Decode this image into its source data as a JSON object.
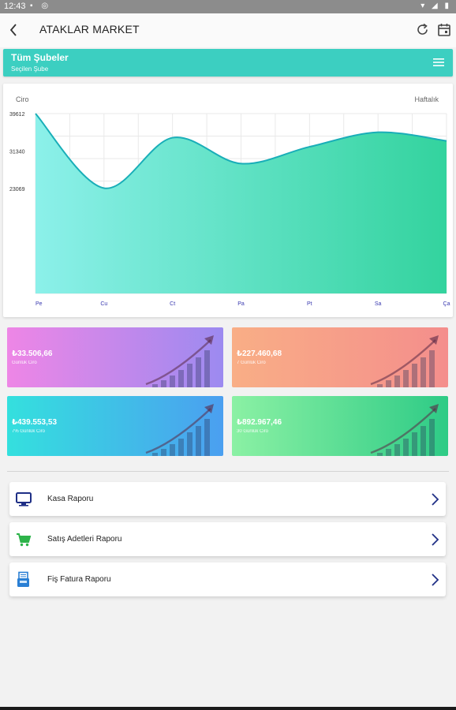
{
  "status_bar": {
    "time": "12:43"
  },
  "app_bar": {
    "title": "ATAKLAR MARKET",
    "icons": [
      "back-arrow-icon",
      "refresh-icon",
      "calendar-icon"
    ]
  },
  "branch": {
    "title": "Tüm Şubeler",
    "subtitle": "Seçilen Şube",
    "icon": "menu-icon"
  },
  "chart_data": {
    "type": "area",
    "title": "Ciro",
    "period_label": "Haftalık",
    "categories": [
      "Pe",
      "Cu",
      "Ct",
      "Pa",
      "Pt",
      "Sa",
      "Ça"
    ],
    "ticks": [
      "39612",
      "31340",
      "23069"
    ],
    "tick_values": [
      39612,
      31340,
      23069
    ],
    "ylim": [
      0,
      39612
    ],
    "series": [
      {
        "values": [
          39612,
          23200,
          34300,
          28600,
          32300,
          35500,
          33600
        ]
      }
    ],
    "grid": true,
    "colors": {
      "line": "#19aeb8",
      "fill_start": "#8cf0ea",
      "fill_end": "#33d39e"
    }
  },
  "stats": [
    {
      "value": "₺33.506,66",
      "label": "Günlük Ciro"
    },
    {
      "value": "₺227.460,68",
      "label": "7 Günlük Ciro"
    },
    {
      "value": "₺439.553,53",
      "label": "7% Günlük Ciro"
    },
    {
      "value": "₺892.967,46",
      "label": "30 Günlük Ciro"
    }
  ],
  "reports": [
    {
      "label": "Kasa Raporu",
      "icon": "monitor-icon",
      "color": "#1f2f86"
    },
    {
      "label": "Satış Adetleri Raporu",
      "icon": "shopping-cart-icon",
      "color": "#2db34a"
    },
    {
      "label": "Fiş Fatura Raporu",
      "icon": "receipt-device-icon",
      "color": "#2a7fd4"
    }
  ]
}
